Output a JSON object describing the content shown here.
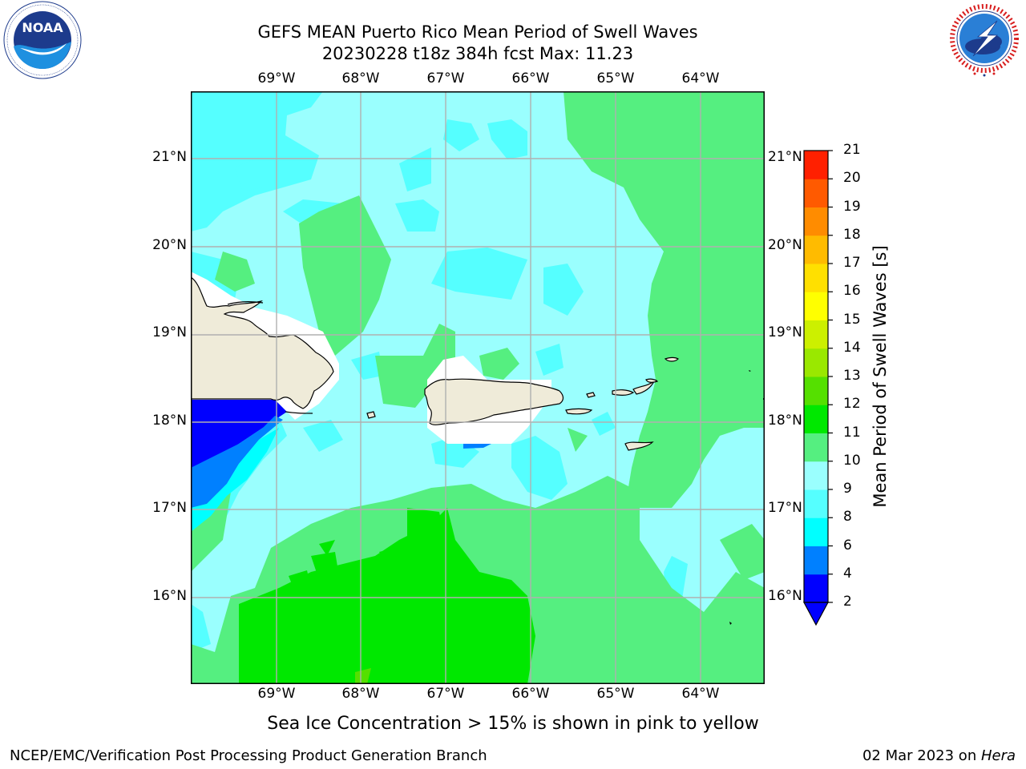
{
  "header": {
    "title_line1": "GEFS MEAN Puerto Rico Mean Period of Swell Waves",
    "title_line2": "20230228 t18z 384h fcst   Max: 11.23"
  },
  "logos": {
    "left_icon": "noaa-logo",
    "left_text": "NOAA",
    "right_icon": "nws-logo",
    "right_text": "NATIONAL WEATHER SERVICE"
  },
  "map": {
    "lon_labels": [
      "69°W",
      "68°W",
      "67°W",
      "66°W",
      "65°W",
      "64°W"
    ],
    "lat_labels": [
      "21°N",
      "20°N",
      "19°N",
      "18°N",
      "17°N",
      "16°N"
    ],
    "ocean_fill_color": "#9afffe",
    "land_color": "#efebd9"
  },
  "colorbar": {
    "title": "Mean Period of Swell Waves [s]",
    "ticks": [
      "2",
      "4",
      "6",
      "8",
      "9",
      "10",
      "11",
      "12",
      "13",
      "14",
      "15",
      "16",
      "17",
      "18",
      "19",
      "20",
      "21"
    ],
    "colors": [
      "#0000ff",
      "#0080ff",
      "#00ffff",
      "#55ffff",
      "#9afffe",
      "#55ef80",
      "#00e800",
      "#55e000",
      "#9ae800",
      "#ccf000",
      "#ffff00",
      "#ffe000",
      "#ffbb00",
      "#ff8c00",
      "#ff5a00",
      "#ff2000"
    ],
    "extend_min_color": "#0000ff"
  },
  "footer": {
    "note": "Sea Ice Concentration > 15% is shown in pink to yellow",
    "credit": "NCEP/EMC/Verification Post Processing Product Generation Branch",
    "date": "02 Mar 2023 on ",
    "host": "Hera"
  }
}
